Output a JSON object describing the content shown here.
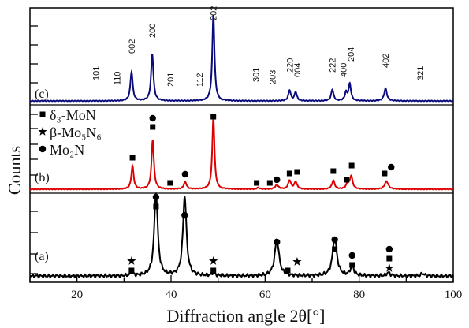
{
  "chart_data": {
    "type": "line",
    "xlabel": "Diffraction angle 2θ[°]",
    "ylabel": "Counts",
    "xlim": [
      10,
      100
    ],
    "xticks": [
      20,
      40,
      60,
      80,
      100
    ],
    "grid": false,
    "colors": {
      "a": "#000000",
      "b": "#dd0000",
      "c": "#0a0a7c"
    },
    "series": [
      {
        "name": "(a)",
        "color": "#000000",
        "peaks": [
          {
            "x": 31.6,
            "h": 0.04,
            "w": 0.35
          },
          {
            "x": 36.8,
            "h": 1.0,
            "w": 0.45
          },
          {
            "x": 42.9,
            "h": 0.96,
            "w": 0.45
          },
          {
            "x": 49.0,
            "h": 0.04,
            "w": 0.35
          },
          {
            "x": 62.5,
            "h": 0.44,
            "w": 0.55
          },
          {
            "x": 74.8,
            "h": 0.46,
            "w": 0.55
          },
          {
            "x": 78.5,
            "h": 0.12,
            "w": 0.45
          },
          {
            "x": 86.2,
            "h": 0.04,
            "w": 0.45
          },
          {
            "x": 93.5,
            "h": 0.03,
            "w": 0.4
          }
        ]
      },
      {
        "name": "(b)",
        "color": "#dd0000",
        "peaks": [
          {
            "x": 31.8,
            "h": 0.32,
            "w": 0.3
          },
          {
            "x": 36.1,
            "h": 0.68,
            "w": 0.3
          },
          {
            "x": 43.0,
            "h": 0.1,
            "w": 0.35
          },
          {
            "x": 49.0,
            "h": 1.0,
            "w": 0.28
          },
          {
            "x": 58.5,
            "h": 0.02,
            "w": 0.35
          },
          {
            "x": 62.5,
            "h": 0.06,
            "w": 0.4
          },
          {
            "x": 65.2,
            "h": 0.12,
            "w": 0.35
          },
          {
            "x": 66.5,
            "h": 0.1,
            "w": 0.35
          },
          {
            "x": 74.5,
            "h": 0.12,
            "w": 0.35
          },
          {
            "x": 77.5,
            "h": 0.07,
            "w": 0.35
          },
          {
            "x": 78.3,
            "h": 0.18,
            "w": 0.35
          },
          {
            "x": 85.8,
            "h": 0.11,
            "w": 0.45
          }
        ]
      },
      {
        "name": "(c)",
        "color": "#0a0a7c",
        "peaks": [
          {
            "x": 31.6,
            "h": 0.33,
            "w": 0.3
          },
          {
            "x": 36.0,
            "h": 0.53,
            "w": 0.3
          },
          {
            "x": 49.0,
            "h": 0.98,
            "w": 0.28
          },
          {
            "x": 65.2,
            "h": 0.12,
            "w": 0.3
          },
          {
            "x": 66.5,
            "h": 0.1,
            "w": 0.3
          },
          {
            "x": 74.3,
            "h": 0.13,
            "w": 0.3
          },
          {
            "x": 77.2,
            "h": 0.09,
            "w": 0.3
          },
          {
            "x": 78.0,
            "h": 0.19,
            "w": 0.3
          },
          {
            "x": 85.6,
            "h": 0.14,
            "w": 0.35
          }
        ]
      }
    ],
    "panel_labels": [
      "(a)",
      "(b)",
      "(c)"
    ],
    "peak_labels": [
      {
        "text": "101",
        "x": 24.0
      },
      {
        "text": "110",
        "x": 28.5
      },
      {
        "text": "002",
        "x": 31.6
      },
      {
        "text": "200",
        "x": 36.0
      },
      {
        "text": "201",
        "x": 39.8
      },
      {
        "text": "112",
        "x": 46.0
      },
      {
        "text": "202",
        "x": 49.0
      },
      {
        "text": "301",
        "x": 58.0
      },
      {
        "text": "203",
        "x": 61.5
      },
      {
        "text": "220",
        "x": 65.2
      },
      {
        "text": "004",
        "x": 66.8
      },
      {
        "text": "222",
        "x": 74.3
      },
      {
        "text": "400",
        "x": 76.6
      },
      {
        "text": "204",
        "x": 78.2
      },
      {
        "text": "402",
        "x": 85.6
      },
      {
        "text": "321",
        "x": 93.0
      }
    ],
    "legend": [
      {
        "marker": "square",
        "text": "δ₃-MoN"
      },
      {
        "marker": "star",
        "text": "β-Mo₅N₆"
      },
      {
        "marker": "circle",
        "text": "Mo₂N"
      }
    ],
    "markers_b": [
      {
        "x": 31.8,
        "symbols": [
          "square"
        ]
      },
      {
        "x": 36.1,
        "symbols": [
          "square",
          "circle"
        ]
      },
      {
        "x": 39.8,
        "symbols": [
          "square"
        ]
      },
      {
        "x": 43.0,
        "symbols": [
          "circle"
        ]
      },
      {
        "x": 49.0,
        "symbols": [
          "square"
        ]
      },
      {
        "x": 58.2,
        "symbols": [
          "square"
        ]
      },
      {
        "x": 61.0,
        "symbols": [
          "square"
        ]
      },
      {
        "x": 62.5,
        "symbols": [
          "circle"
        ]
      },
      {
        "x": 65.2,
        "symbols": [
          "square"
        ]
      },
      {
        "x": 66.8,
        "symbols": [
          "square"
        ]
      },
      {
        "x": 74.5,
        "symbols": [
          "square"
        ]
      },
      {
        "x": 77.3,
        "symbols": [
          "square"
        ]
      },
      {
        "x": 78.4,
        "symbols": [
          "square"
        ]
      },
      {
        "x": 85.4,
        "symbols": [
          "square"
        ]
      },
      {
        "x": 86.8,
        "symbols": [
          "circle"
        ]
      }
    ],
    "markers_a": [
      {
        "x": 31.6,
        "symbols": [
          "square",
          "star"
        ]
      },
      {
        "x": 36.8,
        "symbols": [
          "square",
          "circle"
        ]
      },
      {
        "x": 42.9,
        "symbols": [
          "circle"
        ]
      },
      {
        "x": 49.0,
        "symbols": [
          "square",
          "star"
        ]
      },
      {
        "x": 62.5,
        "symbols": [
          "circle"
        ]
      },
      {
        "x": 64.8,
        "symbols": [
          "square"
        ]
      },
      {
        "x": 66.8,
        "symbols": [
          "star"
        ]
      },
      {
        "x": 74.8,
        "symbols": [
          "square",
          "circle"
        ]
      },
      {
        "x": 78.5,
        "symbols": [
          "square",
          "circle"
        ]
      },
      {
        "x": 86.4,
        "symbols": [
          "star",
          "square",
          "circle"
        ]
      }
    ]
  }
}
